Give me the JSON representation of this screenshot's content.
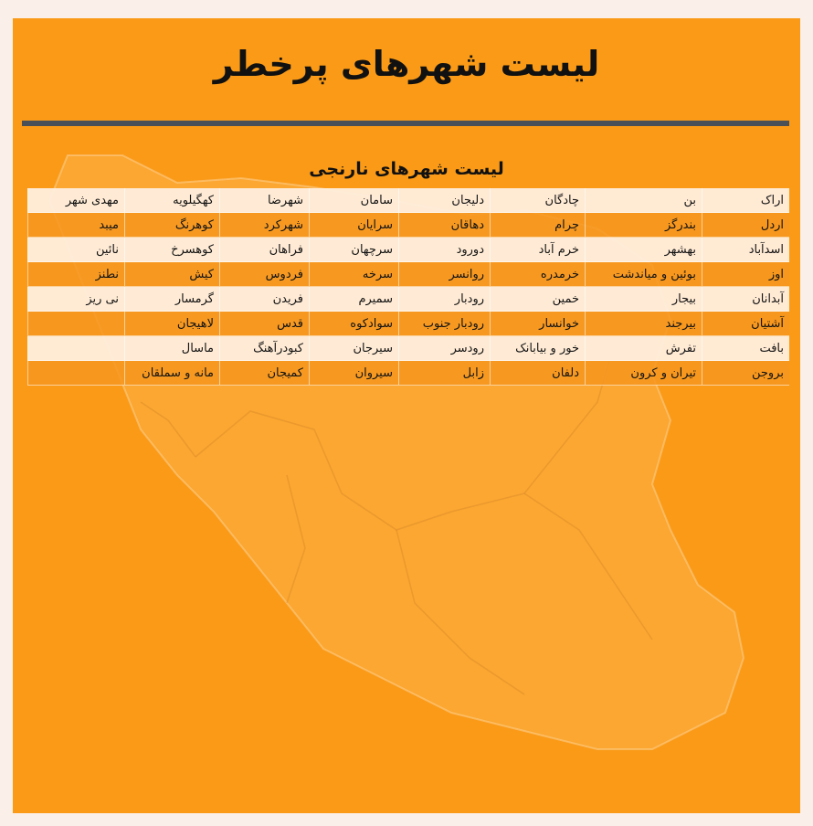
{
  "page": {
    "title": "لیست شهرهای پرخطر",
    "subtitle": "لیست شهرهای نارنجی"
  },
  "colors": {
    "background": "#fbefe9",
    "card": "#fa9a17",
    "divider": "#4a5058",
    "row_light": "#ffeede",
    "row_orange": "#f6961e"
  },
  "table": {
    "rows": [
      [
        "اراک",
        "بن",
        "چادگان",
        "دلیجان",
        "سامان",
        "شهرضا",
        "کهگیلویه",
        "مهدی شهر"
      ],
      [
        "اردل",
        "بندرگز",
        "چرام",
        "دهاقان",
        "سرایان",
        "شهرکرد",
        "کوهرنگ",
        "میبد"
      ],
      [
        "اسدآباد",
        "بهشهر",
        "خرم آباد",
        "دورود",
        "سرچهان",
        "فراهان",
        "کوهسرخ",
        "نائین"
      ],
      [
        "اوز",
        "بوئین و میاندشت",
        "خرمدره",
        "روانسر",
        "سرخه",
        "فردوس",
        "کیش",
        "نطنز"
      ],
      [
        "آبدانان",
        "بیجار",
        "خمین",
        "رودبار",
        "سمیرم",
        "فریدن",
        "گرمسار",
        "نی ریز"
      ],
      [
        "آشتیان",
        "بیرجند",
        "خوانسار",
        "رودبار جنوب",
        "سوادکوه",
        "قدس",
        "لاهیجان",
        ""
      ],
      [
        "بافت",
        "تفرش",
        "خور و بیابانک",
        "رودسر",
        "سیرجان",
        "کبودرآهنگ",
        "ماسال",
        ""
      ],
      [
        "بروجن",
        "تیران و کرون",
        "دلفان",
        "زابل",
        "سیروان",
        "کمیجان",
        "مانه و سملقان",
        ""
      ]
    ]
  }
}
